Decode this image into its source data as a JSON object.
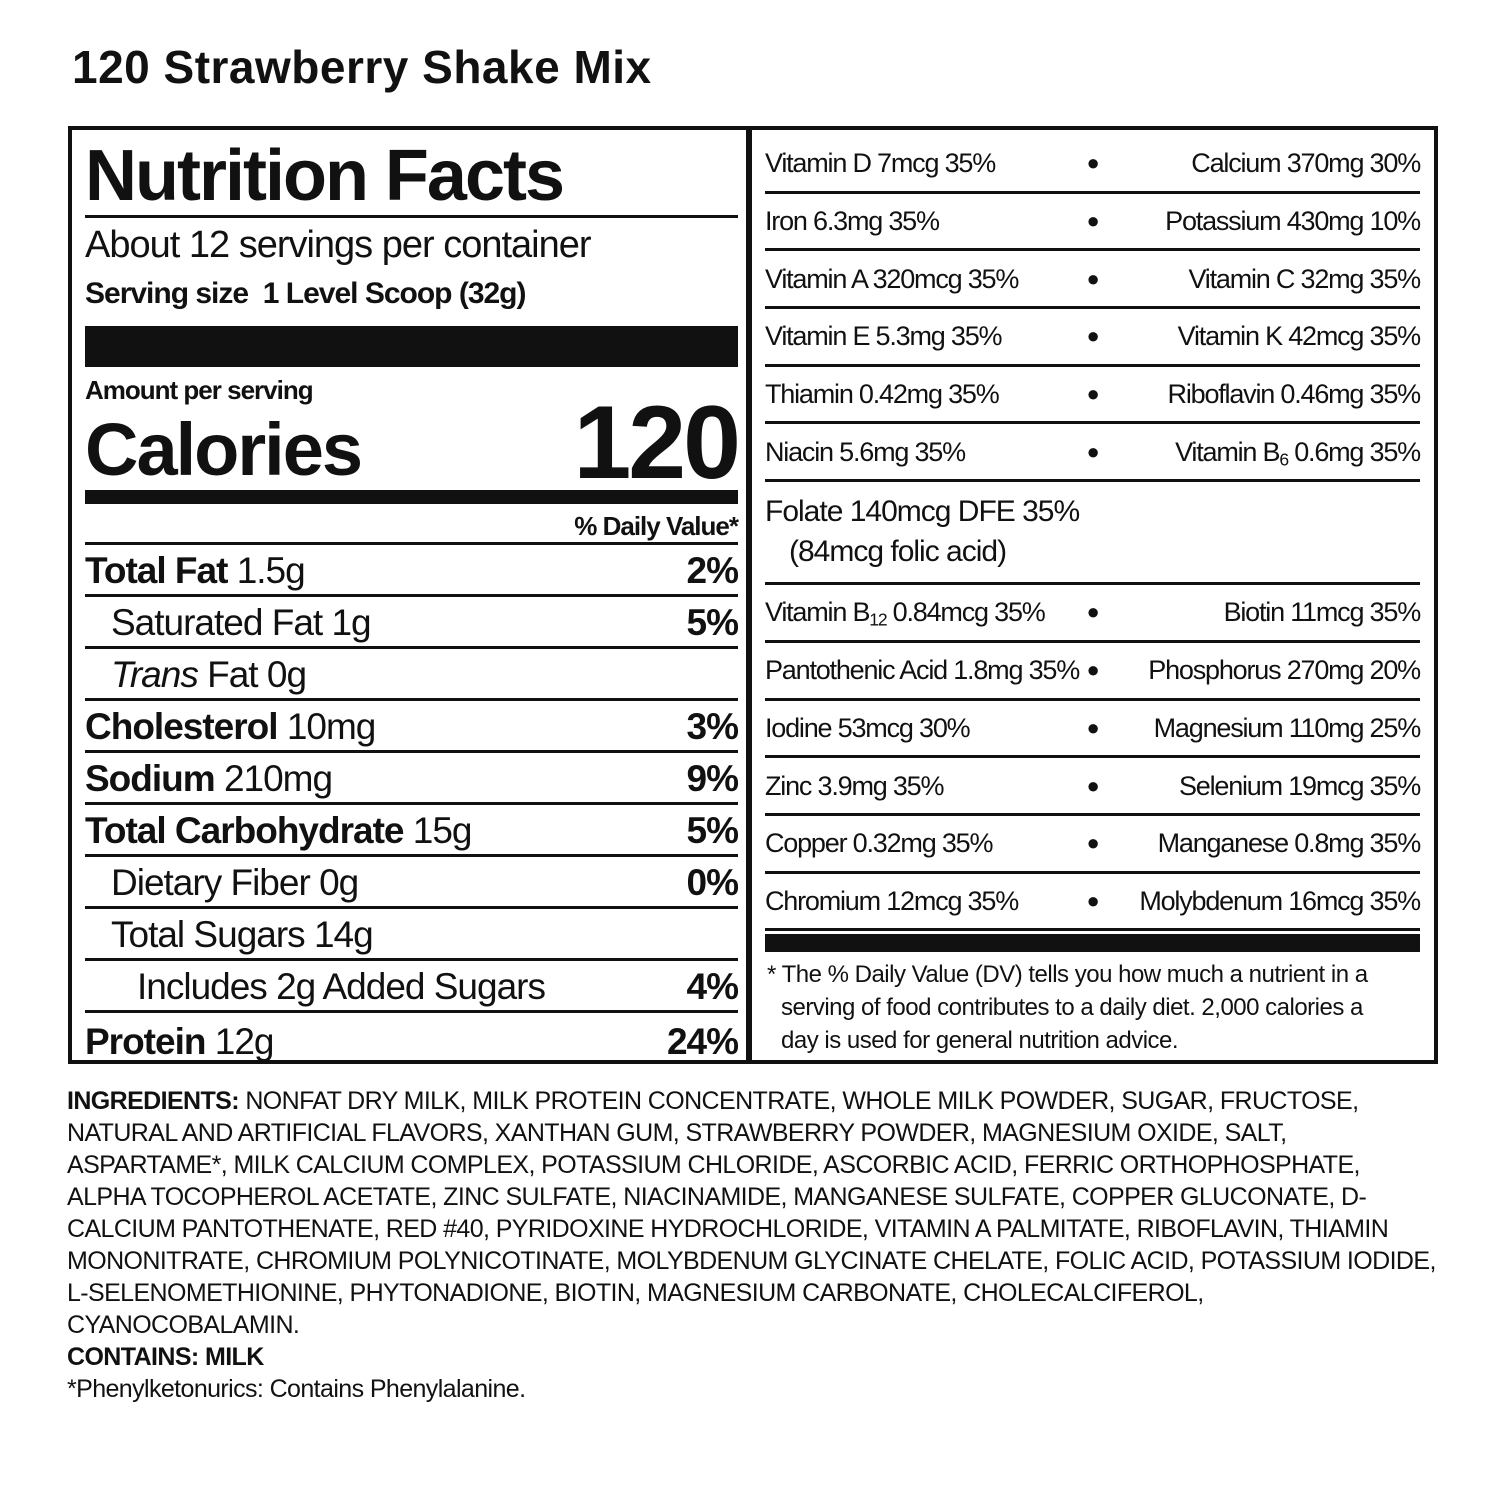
{
  "title": "120 Strawberry Shake Mix",
  "panel": {
    "heading": "Nutrition Facts",
    "servings": "About 12 servings per container",
    "serving_size_label": "Serving size",
    "serving_size_value": "1 Level Scoop (32g)",
    "amount_per_serving": "Amount per serving",
    "calories_label": "Calories",
    "calories_value": "120",
    "dv_header": "% Daily Value*",
    "rows": [
      {
        "name": "Total Fat",
        "amount": "1.5g",
        "dv": "2%"
      },
      {
        "name": "Saturated Fat",
        "amount": "1g",
        "dv": "5%"
      },
      {
        "name": "Trans",
        "amount": "Fat 0g",
        "dv": ""
      },
      {
        "name": "Cholesterol",
        "amount": "10mg",
        "dv": "3%"
      },
      {
        "name": "Sodium",
        "amount": "210mg",
        "dv": "9%"
      },
      {
        "name": "Total Carbohydrate",
        "amount": "15g",
        "dv": "5%"
      },
      {
        "name": "Dietary Fiber",
        "amount": "0g",
        "dv": "0%"
      },
      {
        "name": "Total Sugars",
        "amount": "14g",
        "dv": ""
      },
      {
        "name": "Includes 2g Added Sugars",
        "amount": "",
        "dv": "4%"
      },
      {
        "name": "Protein",
        "amount": "12g",
        "dv": "24%"
      }
    ]
  },
  "vitamins": {
    "bullet": "●",
    "rows": [
      [
        "Vitamin D 7mcg 35%",
        "Calcium 370mg 30%"
      ],
      [
        "Iron 6.3mg 35%",
        "Potassium 430mg 10%"
      ],
      [
        "Vitamin A 320mcg 35%",
        "Vitamin C 32mg 35%"
      ],
      [
        "Vitamin E 5.3mg 35%",
        "Vitamin K 42mcg 35%"
      ],
      [
        "Thiamin 0.42mg 35%",
        "Riboflavin 0.46mg 35%"
      ],
      [
        "Niacin 5.6mg 35%",
        {
          "a": "Vitamin B",
          "sub": "6",
          "b": " 0.6mg 35%"
        }
      ]
    ],
    "folate_line1": "Folate 140mcg DFE 35%",
    "folate_line2": "(84mcg folic acid)",
    "rows2": [
      [
        {
          "a": "Vitamin B",
          "sub": "12",
          "b": " 0.84mcg 35%"
        },
        "Biotin 11mcg 35%"
      ],
      [
        "Pantothenic Acid 1.8mg 35%",
        "Phosphorus 270mg 20%"
      ],
      [
        "Iodine 53mcg 30%",
        "Magnesium 110mg 25%"
      ],
      [
        "Zinc 3.9mg 35%",
        "Selenium 19mcg 35%"
      ],
      [
        "Copper 0.32mg 35%",
        "Manganese 0.8mg 35%"
      ],
      [
        "Chromium 12mcg 35%",
        "Molybdenum 16mcg 35%"
      ]
    ],
    "footnote_line1": "* The % Daily Value (DV) tells you how much a nutrient in a",
    "footnote_line2": "serving of food contributes to a daily diet. 2,000 calories a",
    "footnote_line3": "day is used for general nutrition advice."
  },
  "ingredients": {
    "label": "INGREDIENTS:",
    "text": "NONFAT DRY MILK, MILK PROTEIN CONCENTRATE, WHOLE MILK POWDER, SUGAR, FRUCTOSE, NATURAL AND ARTIFICIAL FLAVORS, XANTHAN GUM, STRAWBERRY POWDER, MAGNESIUM OXIDE, SALT, ASPARTAME*, MILK CALCIUM COMPLEX, POTASSIUM CHLORIDE, ASCORBIC ACID, FERRIC ORTHOPHOSPHATE, ALPHA TOCOPHEROL ACETATE, ZINC SULFATE, NIACINAMIDE, MANGANESE SULFATE, COPPER GLUCONATE, D-CALCIUM PANTOTHENATE, RED #40, PYRIDOXINE HYDROCHLORIDE, VITAMIN A PALMITATE, RIBOFLAVIN, THIAMIN MONONITRATE, CHROMIUM POLYNICOTINATE, MOLYBDENUM GLYCINATE CHELATE, FOLIC ACID, POTASSIUM IODIDE, L-SELENOMETHIONINE, PHYTONADIONE, BIOTIN, MAGNESIUM CARBONATE, CHOLECALCIFEROL, CYANOCOBALAMIN.",
    "contains": "CONTAINS: MILK",
    "pku": "*Phenylketonurics: Contains Phenylalanine."
  }
}
